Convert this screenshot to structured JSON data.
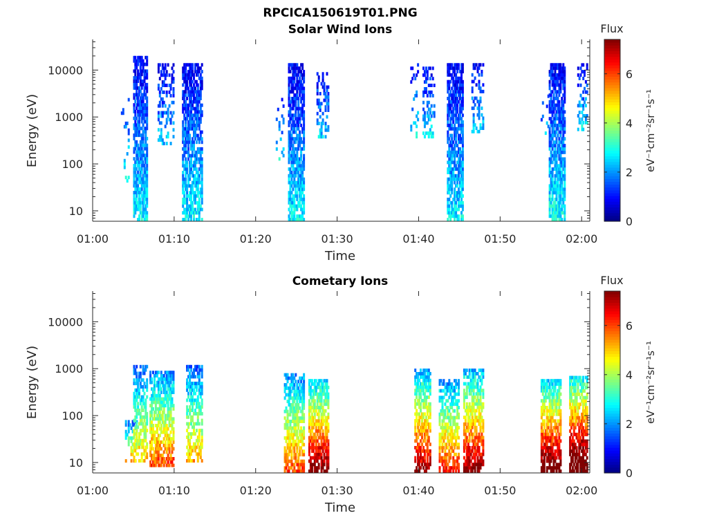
{
  "figure_title": "RPCICA150619T01.PNG",
  "chart_data": [
    {
      "type": "heatmap",
      "title": "Solar Wind Ions",
      "xlabel": "Time",
      "ylabel": "Energy (eV)",
      "y_scale": "log",
      "xlim": [
        "01:00",
        "02:00"
      ],
      "ylim": [
        6,
        45000
      ],
      "x_ticks": [
        "01:00",
        "01:10",
        "01:20",
        "01:30",
        "01:40",
        "01:50",
        "02:00"
      ],
      "y_ticks": [
        10,
        100,
        1000,
        10000
      ],
      "y_tick_labels": [
        "10",
        "100",
        "1000",
        "10000"
      ],
      "colorbar": {
        "label": "Flux",
        "unit": "eV⁻¹cm⁻²sr⁻¹s⁻¹",
        "range": [
          0,
          7.4
        ],
        "ticks": [
          0,
          2,
          4,
          6
        ],
        "colormap": "jet"
      },
      "bursts": [
        {
          "start": "01:03:30",
          "end": "01:04:30",
          "e_min": 40,
          "e_max": 3000,
          "level": 1.8,
          "density": 0.15
        },
        {
          "start": "01:05:00",
          "end": "01:06:45",
          "e_min": 6,
          "e_max": 20000,
          "level": 1.6,
          "density": 0.75
        },
        {
          "start": "01:08:00",
          "end": "01:10:00",
          "e_min": 250,
          "e_max": 14000,
          "level": 1.4,
          "density": 0.35
        },
        {
          "start": "01:11:00",
          "end": "01:13:30",
          "e_min": 6,
          "e_max": 14000,
          "level": 1.6,
          "density": 0.75
        },
        {
          "start": "01:22:30",
          "end": "01:23:30",
          "e_min": 100,
          "e_max": 3000,
          "level": 1.7,
          "density": 0.15
        },
        {
          "start": "01:24:00",
          "end": "01:26:00",
          "e_min": 6,
          "e_max": 14000,
          "level": 1.6,
          "density": 0.75
        },
        {
          "start": "01:27:30",
          "end": "01:29:00",
          "e_min": 350,
          "e_max": 9000,
          "level": 1.5,
          "density": 0.35
        },
        {
          "start": "01:39:00",
          "end": "01:40:00",
          "e_min": 350,
          "e_max": 14000,
          "level": 1.6,
          "density": 0.15
        },
        {
          "start": "01:40:30",
          "end": "01:42:00",
          "e_min": 350,
          "e_max": 14000,
          "level": 1.6,
          "density": 0.35
        },
        {
          "start": "01:43:30",
          "end": "01:45:30",
          "e_min": 6,
          "e_max": 14000,
          "level": 1.6,
          "density": 0.75
        },
        {
          "start": "01:46:30",
          "end": "01:48:00",
          "e_min": 450,
          "e_max": 14000,
          "level": 1.5,
          "density": 0.35
        },
        {
          "start": "01:55:00",
          "end": "01:56:00",
          "e_min": 300,
          "e_max": 3000,
          "level": 1.6,
          "density": 0.2
        },
        {
          "start": "01:56:00",
          "end": "01:58:00",
          "e_min": 6,
          "e_max": 14000,
          "level": 1.7,
          "density": 0.75
        },
        {
          "start": "01:59:30",
          "end": "02:00:45",
          "e_min": 500,
          "e_max": 14000,
          "level": 1.6,
          "density": 0.35
        }
      ]
    },
    {
      "type": "heatmap",
      "title": "Cometary Ions",
      "xlabel": "Time",
      "ylabel": "Energy (eV)",
      "y_scale": "log",
      "xlim": [
        "01:00",
        "02:00"
      ],
      "ylim": [
        6,
        45000
      ],
      "x_ticks": [
        "01:00",
        "01:10",
        "01:20",
        "01:30",
        "01:40",
        "01:50",
        "02:00"
      ],
      "y_ticks": [
        10,
        100,
        1000,
        10000
      ],
      "y_tick_labels": [
        "10",
        "100",
        "1000",
        "10000"
      ],
      "colorbar": {
        "label": "Flux",
        "unit": "eV⁻¹cm⁻²sr⁻¹s⁻¹",
        "range": [
          0,
          7.4
        ],
        "ticks": [
          0,
          2,
          4,
          6
        ],
        "colormap": "jet"
      },
      "bursts": [
        {
          "start": "01:04:00",
          "end": "01:05:30",
          "e_min": 10,
          "e_max": 80,
          "level": 3.2,
          "density": 0.3
        },
        {
          "start": "01:05:00",
          "end": "01:06:45",
          "e_min": 10,
          "e_max": 1200,
          "level": 3.0,
          "density": 0.6
        },
        {
          "start": "01:07:00",
          "end": "01:10:00",
          "e_min": 8,
          "e_max": 900,
          "level": 3.6,
          "density": 0.7
        },
        {
          "start": "01:11:30",
          "end": "01:13:30",
          "e_min": 10,
          "e_max": 1200,
          "level": 3.1,
          "density": 0.6
        },
        {
          "start": "01:23:30",
          "end": "01:26:00",
          "e_min": 6,
          "e_max": 800,
          "level": 3.6,
          "density": 0.7
        },
        {
          "start": "01:26:30",
          "end": "01:29:00",
          "e_min": 6,
          "e_max": 600,
          "level": 4.6,
          "density": 0.75
        },
        {
          "start": "01:39:30",
          "end": "01:41:30",
          "e_min": 6,
          "e_max": 1000,
          "level": 4.3,
          "density": 0.7
        },
        {
          "start": "01:42:30",
          "end": "01:45:00",
          "e_min": 6,
          "e_max": 600,
          "level": 3.8,
          "density": 0.65
        },
        {
          "start": "01:45:30",
          "end": "01:48:00",
          "e_min": 6,
          "e_max": 1000,
          "level": 4.4,
          "density": 0.7
        },
        {
          "start": "01:55:00",
          "end": "01:57:30",
          "e_min": 6,
          "e_max": 600,
          "level": 4.8,
          "density": 0.75
        },
        {
          "start": "01:58:30",
          "end": "02:00:45",
          "e_min": 6,
          "e_max": 700,
          "level": 5.2,
          "density": 0.75
        }
      ]
    }
  ]
}
